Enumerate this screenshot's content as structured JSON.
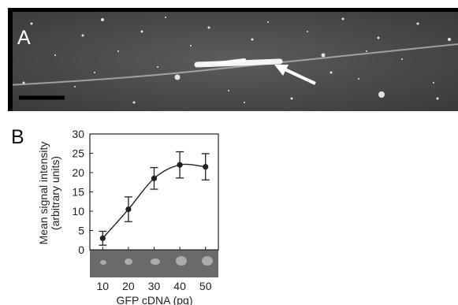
{
  "figure": {
    "panel_a_label": "A",
    "panel_b_label": "B"
  },
  "chart_data": {
    "type": "line",
    "title": "",
    "xlabel": "GFP cDNA (pg)",
    "ylabel": "Mean signal intensity (arbitrary units)",
    "ylabel_lines": [
      "Mean signal intensity",
      "(arbitrary units)"
    ],
    "x": [
      10,
      20,
      30,
      40,
      50
    ],
    "y": [
      3,
      10.5,
      18.5,
      22,
      21.5
    ],
    "error": [
      1.8,
      3.2,
      2.8,
      3.4,
      3.4
    ],
    "xlim": [
      5,
      55
    ],
    "ylim": [
      0,
      30
    ],
    "xticks": [
      10,
      20,
      30,
      40,
      50
    ],
    "yticks": [
      0,
      5,
      10,
      15,
      20,
      25,
      30
    ],
    "grid": false,
    "colors": {
      "line": "#222222",
      "marker": "#222222",
      "image_strip": "#6a6a6a"
    }
  }
}
